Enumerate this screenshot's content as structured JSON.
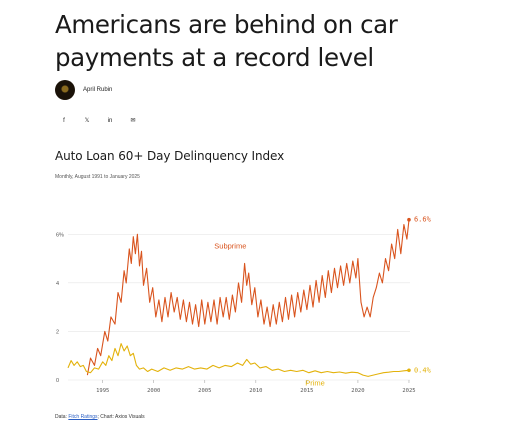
{
  "article": {
    "headline": "Americans are behind on car payments at a record level",
    "author": "April Rubin"
  },
  "share": [
    {
      "name": "facebook-icon",
      "glyph": "f"
    },
    {
      "name": "x-icon",
      "glyph": "𝕏"
    },
    {
      "name": "linkedin-icon",
      "glyph": "in"
    },
    {
      "name": "email-icon",
      "glyph": "✉"
    }
  ],
  "chart": {
    "title": "Auto Loan 60+ Day Delinquency Index",
    "subtitle": "Monthly, August 1991 to January 2025",
    "source_prefix": "Data: ",
    "source_link": "Fitch Ratings",
    "source_suffix": "; Chart: Axios Visuals"
  },
  "chart_data": {
    "type": "line",
    "x_ticks": [
      "1995",
      "2000",
      "2005",
      "2010",
      "2015",
      "2020",
      "2025"
    ],
    "y_ticks": [
      "0",
      "2",
      "4",
      "6%"
    ],
    "ylim": [
      0,
      7
    ],
    "xlim": [
      1991.6,
      2025.1
    ],
    "grid": true,
    "series": [
      {
        "name": "Subprime",
        "color": "#d9541e",
        "end_label": "6.6%",
        "points": [
          [
            1993.5,
            0.2
          ],
          [
            1993.8,
            0.9
          ],
          [
            1994.2,
            0.6
          ],
          [
            1994.5,
            1.3
          ],
          [
            1994.8,
            1.0
          ],
          [
            1995.2,
            2.0
          ],
          [
            1995.5,
            1.6
          ],
          [
            1995.8,
            2.6
          ],
          [
            1996.2,
            2.3
          ],
          [
            1996.5,
            3.6
          ],
          [
            1996.8,
            3.2
          ],
          [
            1997.1,
            4.5
          ],
          [
            1997.3,
            4.0
          ],
          [
            1997.6,
            5.4
          ],
          [
            1997.8,
            4.8
          ],
          [
            1998.0,
            5.9
          ],
          [
            1998.2,
            5.2
          ],
          [
            1998.4,
            6.0
          ],
          [
            1998.6,
            4.7
          ],
          [
            1998.8,
            5.3
          ],
          [
            1999.0,
            3.9
          ],
          [
            1999.3,
            4.6
          ],
          [
            1999.6,
            3.2
          ],
          [
            1999.9,
            3.8
          ],
          [
            2000.2,
            2.6
          ],
          [
            2000.5,
            3.3
          ],
          [
            2000.8,
            2.4
          ],
          [
            2001.1,
            3.4
          ],
          [
            2001.4,
            2.6
          ],
          [
            2001.7,
            3.6
          ],
          [
            2002.0,
            2.8
          ],
          [
            2002.3,
            3.4
          ],
          [
            2002.6,
            2.5
          ],
          [
            2002.9,
            3.3
          ],
          [
            2003.2,
            2.4
          ],
          [
            2003.5,
            3.2
          ],
          [
            2003.8,
            2.3
          ],
          [
            2004.1,
            3.1
          ],
          [
            2004.4,
            2.2
          ],
          [
            2004.7,
            3.3
          ],
          [
            2005.0,
            2.3
          ],
          [
            2005.3,
            3.2
          ],
          [
            2005.6,
            2.4
          ],
          [
            2005.9,
            3.3
          ],
          [
            2006.2,
            2.3
          ],
          [
            2006.5,
            3.4
          ],
          [
            2006.8,
            2.6
          ],
          [
            2007.1,
            3.4
          ],
          [
            2007.4,
            2.5
          ],
          [
            2007.7,
            3.5
          ],
          [
            2008.0,
            2.8
          ],
          [
            2008.3,
            4.0
          ],
          [
            2008.6,
            3.2
          ],
          [
            2008.9,
            4.8
          ],
          [
            2009.1,
            3.9
          ],
          [
            2009.3,
            4.4
          ],
          [
            2009.6,
            3.1
          ],
          [
            2009.9,
            3.8
          ],
          [
            2010.2,
            2.6
          ],
          [
            2010.5,
            3.3
          ],
          [
            2010.8,
            2.3
          ],
          [
            2011.1,
            3.0
          ],
          [
            2011.4,
            2.2
          ],
          [
            2011.7,
            3.1
          ],
          [
            2012.0,
            2.3
          ],
          [
            2012.3,
            3.2
          ],
          [
            2012.6,
            2.4
          ],
          [
            2012.9,
            3.4
          ],
          [
            2013.2,
            2.5
          ],
          [
            2013.5,
            3.5
          ],
          [
            2013.8,
            2.6
          ],
          [
            2014.1,
            3.6
          ],
          [
            2014.4,
            2.8
          ],
          [
            2014.7,
            3.7
          ],
          [
            2015.0,
            2.9
          ],
          [
            2015.3,
            3.9
          ],
          [
            2015.6,
            3.0
          ],
          [
            2015.9,
            4.1
          ],
          [
            2016.2,
            3.2
          ],
          [
            2016.5,
            4.3
          ],
          [
            2016.8,
            3.4
          ],
          [
            2017.1,
            4.5
          ],
          [
            2017.4,
            3.6
          ],
          [
            2017.7,
            4.6
          ],
          [
            2018.0,
            3.8
          ],
          [
            2018.3,
            4.7
          ],
          [
            2018.6,
            3.9
          ],
          [
            2018.9,
            4.8
          ],
          [
            2019.2,
            4.0
          ],
          [
            2019.5,
            4.9
          ],
          [
            2019.8,
            4.2
          ],
          [
            2020.0,
            5.0
          ],
          [
            2020.3,
            3.2
          ],
          [
            2020.6,
            2.6
          ],
          [
            2020.9,
            3.0
          ],
          [
            2021.2,
            2.6
          ],
          [
            2021.5,
            3.4
          ],
          [
            2021.8,
            3.8
          ],
          [
            2022.1,
            4.4
          ],
          [
            2022.4,
            4.0
          ],
          [
            2022.7,
            5.0
          ],
          [
            2023.0,
            4.5
          ],
          [
            2023.3,
            5.6
          ],
          [
            2023.6,
            5.0
          ],
          [
            2023.9,
            6.2
          ],
          [
            2024.2,
            5.2
          ],
          [
            2024.5,
            6.4
          ],
          [
            2024.8,
            5.8
          ],
          [
            2025.0,
            6.6
          ]
        ]
      },
      {
        "name": "Prime",
        "color": "#e3b20b",
        "end_label": "0.4%",
        "points": [
          [
            1991.6,
            0.5
          ],
          [
            1991.9,
            0.8
          ],
          [
            1992.2,
            0.6
          ],
          [
            1992.5,
            0.75
          ],
          [
            1992.8,
            0.55
          ],
          [
            1993.1,
            0.6
          ],
          [
            1993.4,
            0.35
          ],
          [
            1993.8,
            0.3
          ],
          [
            1994.2,
            0.5
          ],
          [
            1994.6,
            0.45
          ],
          [
            1995.0,
            0.75
          ],
          [
            1995.3,
            0.6
          ],
          [
            1995.6,
            1.0
          ],
          [
            1995.9,
            0.8
          ],
          [
            1996.2,
            1.3
          ],
          [
            1996.5,
            1.0
          ],
          [
            1996.8,
            1.5
          ],
          [
            1997.1,
            1.2
          ],
          [
            1997.4,
            1.4
          ],
          [
            1997.7,
            1.0
          ],
          [
            1998.0,
            1.1
          ],
          [
            1998.3,
            0.6
          ],
          [
            1998.6,
            0.45
          ],
          [
            1999.0,
            0.5
          ],
          [
            1999.4,
            0.35
          ],
          [
            1999.8,
            0.45
          ],
          [
            2000.4,
            0.35
          ],
          [
            2001.0,
            0.5
          ],
          [
            2001.6,
            0.4
          ],
          [
            2002.2,
            0.5
          ],
          [
            2002.8,
            0.45
          ],
          [
            2003.4,
            0.55
          ],
          [
            2004.0,
            0.45
          ],
          [
            2004.6,
            0.5
          ],
          [
            2005.2,
            0.45
          ],
          [
            2005.8,
            0.6
          ],
          [
            2006.4,
            0.5
          ],
          [
            2007.0,
            0.6
          ],
          [
            2007.6,
            0.55
          ],
          [
            2008.2,
            0.7
          ],
          [
            2008.7,
            0.6
          ],
          [
            2009.1,
            0.85
          ],
          [
            2009.5,
            0.65
          ],
          [
            2009.9,
            0.7
          ],
          [
            2010.4,
            0.5
          ],
          [
            2011.0,
            0.55
          ],
          [
            2011.6,
            0.4
          ],
          [
            2012.2,
            0.45
          ],
          [
            2012.8,
            0.35
          ],
          [
            2013.4,
            0.4
          ],
          [
            2014.0,
            0.35
          ],
          [
            2014.6,
            0.4
          ],
          [
            2015.2,
            0.3
          ],
          [
            2015.8,
            0.38
          ],
          [
            2016.4,
            0.3
          ],
          [
            2017.0,
            0.35
          ],
          [
            2017.6,
            0.3
          ],
          [
            2018.2,
            0.33
          ],
          [
            2018.8,
            0.28
          ],
          [
            2019.4,
            0.32
          ],
          [
            2020.0,
            0.3
          ],
          [
            2020.5,
            0.2
          ],
          [
            2021.0,
            0.15
          ],
          [
            2021.5,
            0.2
          ],
          [
            2022.0,
            0.25
          ],
          [
            2022.5,
            0.3
          ],
          [
            2023.0,
            0.32
          ],
          [
            2023.5,
            0.35
          ],
          [
            2024.0,
            0.35
          ],
          [
            2024.5,
            0.38
          ],
          [
            2025.0,
            0.4
          ]
        ]
      }
    ]
  }
}
